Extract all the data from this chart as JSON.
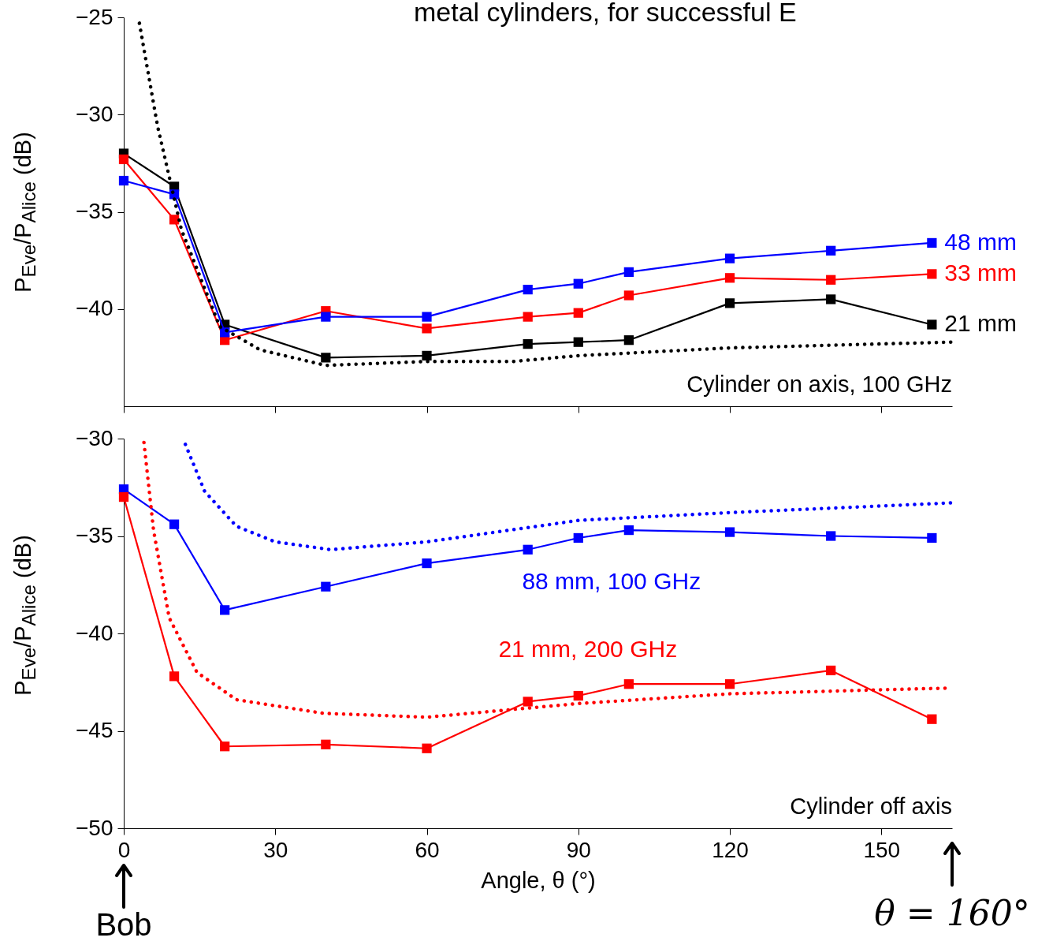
{
  "chart_data": [
    {
      "type": "line",
      "title": "metal cylinders, for successful E",
      "ylabel": "P$_{Eve}$/P$_{Alice}$ (dB)",
      "x": [
        0,
        10,
        20,
        40,
        60,
        80,
        90,
        100,
        120,
        140,
        160
      ],
      "xlim": [
        0,
        164
      ],
      "xticks": [
        0,
        30,
        60,
        90,
        120,
        150
      ],
      "ylim": [
        -45,
        -25
      ],
      "yticks": [
        -25,
        -30,
        -35,
        -40
      ],
      "tick_labels": "y",
      "annotations": [
        "Cylinder on axis, 100 GHz"
      ],
      "series": [
        {
          "name": "21 mm",
          "color": "#000000",
          "marker": "square",
          "line_style": "solid",
          "values": [
            -32.0,
            -33.7,
            -40.8,
            -42.5,
            -42.4,
            -41.8,
            -41.7,
            -41.6,
            -39.7,
            -39.5,
            -40.8
          ]
        },
        {
          "name": "33 mm",
          "color": "#ff0000",
          "marker": "square",
          "line_style": "solid",
          "values": [
            -32.3,
            -35.4,
            -41.6,
            -40.1,
            -41.0,
            -40.4,
            -40.2,
            -39.3,
            -38.4,
            -38.5,
            -38.2
          ]
        },
        {
          "name": "48 mm",
          "color": "#0000ff",
          "marker": "square",
          "line_style": "solid",
          "values": [
            -33.4,
            -34.1,
            -41.2,
            -40.4,
            -40.4,
            -39.0,
            -38.7,
            -38.1,
            -37.4,
            -37.0,
            -36.6
          ]
        },
        {
          "color": "#000000",
          "marker": "none",
          "line_style": "dotted",
          "x": [
            3.1,
            6.7,
            11.4,
            19,
            27,
            40,
            60,
            77,
            90,
            120,
            164
          ],
          "values": [
            -25.3,
            -30.6,
            -35.9,
            -40.9,
            -42.1,
            -42.9,
            -42.7,
            -42.7,
            -42.4,
            -42.0,
            -41.7
          ]
        }
      ]
    },
    {
      "type": "line",
      "xlabel": "Angle, θ (°)",
      "ylabel": "P$_{Eve}$/P$_{Alice}$ (dB)",
      "x": [
        0,
        10,
        20,
        40,
        60,
        80,
        90,
        100,
        120,
        140,
        160
      ],
      "xlim": [
        0,
        164
      ],
      "xticks": [
        0,
        30,
        60,
        90,
        120,
        150
      ],
      "ylim": [
        -50,
        -30
      ],
      "yticks": [
        -30,
        -35,
        -40,
        -45,
        -50
      ],
      "annotations": [
        "Cylinder off axis",
        {
          "text": "Bob",
          "x": 0
        },
        {
          "text": "θ = 160°",
          "x": 164
        }
      ],
      "series": [
        {
          "name": "88 mm, 100 GHz",
          "color": "#0000ff",
          "marker": "square",
          "line_style": "solid",
          "values": [
            -32.6,
            -34.4,
            -38.8,
            -37.6,
            -36.4,
            -35.7,
            -35.1,
            -34.7,
            -34.8,
            -35.0,
            -35.1
          ]
        },
        {
          "name": "21 mm, 200 GHz",
          "color": "#ff0000",
          "marker": "square",
          "line_style": "solid",
          "values": [
            -33.0,
            -42.2,
            -45.8,
            -45.7,
            -45.9,
            -43.5,
            -43.2,
            -42.6,
            -42.6,
            -41.9,
            -44.4
          ]
        },
        {
          "color": "#0000ff",
          "marker": "none",
          "line_style": "dotted",
          "x": [
            12.2,
            16,
            22.3,
            30,
            41,
            60,
            90,
            120,
            164
          ],
          "values": [
            -30.3,
            -32.7,
            -34.5,
            -35.3,
            -35.7,
            -35.3,
            -34.2,
            -33.8,
            -33.3
          ]
        },
        {
          "color": "#ff0000",
          "marker": "none",
          "line_style": "dotted",
          "x": [
            4,
            5.9,
            9,
            14.5,
            22.3,
            39.5,
            60,
            90,
            120,
            164
          ],
          "values": [
            -30.2,
            -34.7,
            -39.2,
            -42.0,
            -43.4,
            -44.1,
            -44.3,
            -43.6,
            -43.1,
            -42.8
          ]
        }
      ]
    }
  ]
}
